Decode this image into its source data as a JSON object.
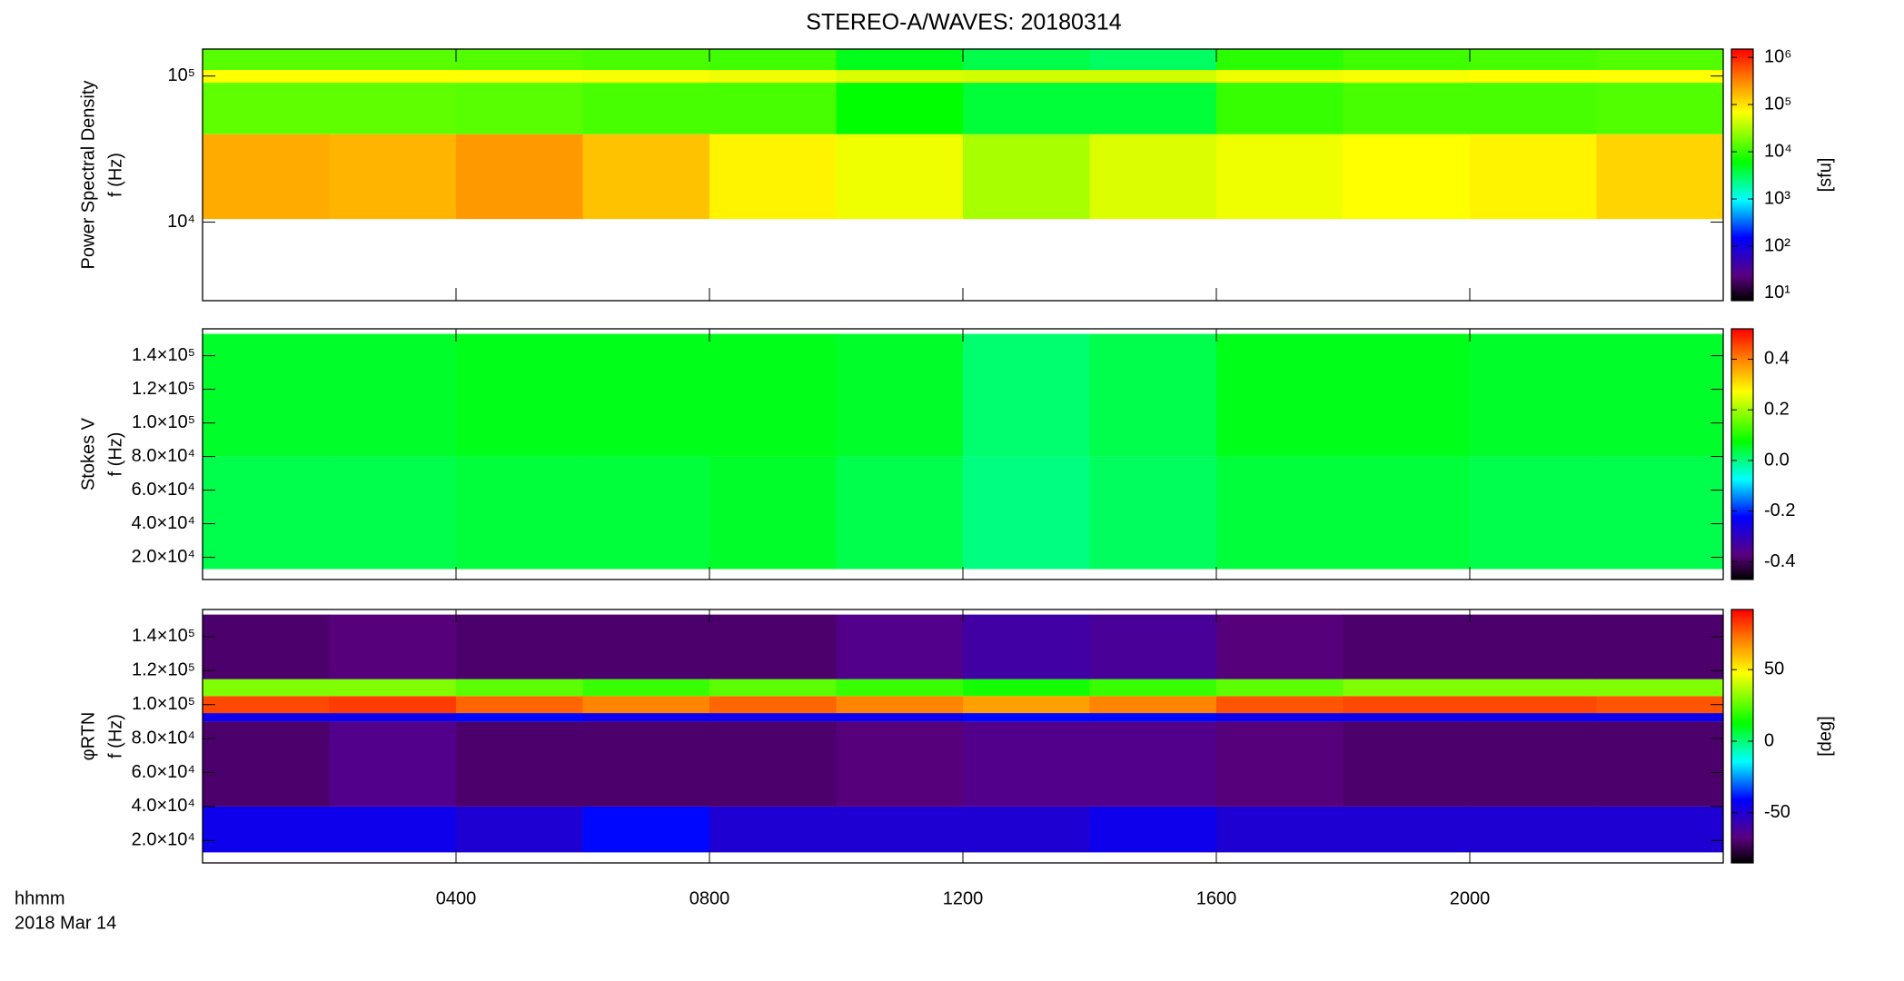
{
  "title": "STEREO-A/WAVES: 20180314",
  "x_axis": {
    "xlim": [
      0,
      24
    ],
    "xticks": [
      {
        "value": 4,
        "label": "0400"
      },
      {
        "value": 8,
        "label": "0800"
      },
      {
        "value": 12,
        "label": "1200"
      },
      {
        "value": 16,
        "label": "1600"
      },
      {
        "value": 20,
        "label": "2000"
      }
    ],
    "labels": [
      "hhmm",
      "2018 Mar 14"
    ]
  },
  "chart_data": [
    {
      "type": "heatmap",
      "ylabel": [
        "Power Spectral Density",
        "f (Hz)"
      ],
      "log_y": true,
      "ylim": [
        2900,
        153000
      ],
      "yticks": [
        {
          "value": 10000,
          "label": "10⁴"
        },
        {
          "value": 100000,
          "label": "10⁵"
        }
      ],
      "x_bins": [
        0,
        2,
        4,
        6,
        8,
        10,
        12,
        14,
        16,
        18,
        20,
        22,
        24
      ],
      "y_bins": [
        10500,
        40000,
        90000,
        110000,
        153000
      ],
      "z": [
        [
          200000,
          180000,
          250000,
          150000,
          80000,
          60000,
          30000,
          50000,
          60000,
          70000,
          80000,
          120000
        ],
        [
          15000,
          15000,
          14000,
          12000,
          12000,
          6000,
          4000,
          4000,
          10000,
          12000,
          12000,
          13000
        ],
        [
          70000,
          70000,
          70000,
          65000,
          60000,
          50000,
          45000,
          45000,
          60000,
          65000,
          70000,
          70000
        ],
        [
          14000,
          14000,
          13000,
          12000,
          11000,
          5000,
          3500,
          3000,
          9000,
          11000,
          12000,
          13000
        ]
      ],
      "colorbar": {
        "log": true,
        "clim": [
          7,
          1500000
        ],
        "label": "[sfu]",
        "ticks": [
          {
            "value": 10,
            "label": "10¹"
          },
          {
            "value": 100,
            "label": "10²"
          },
          {
            "value": 1000,
            "label": "10³"
          },
          {
            "value": 10000,
            "label": "10⁴"
          },
          {
            "value": 100000,
            "label": "10⁵"
          },
          {
            "value": 1000000,
            "label": "10⁶"
          }
        ]
      }
    },
    {
      "type": "heatmap",
      "ylabel": [
        "Stokes V",
        "f (Hz)"
      ],
      "log_y": false,
      "ylim": [
        6800,
        156000
      ],
      "yticks": [
        {
          "value": 20000,
          "label": "2.0×10⁴"
        },
        {
          "value": 40000,
          "label": "4.0×10⁴"
        },
        {
          "value": 60000,
          "label": "6.0×10⁴"
        },
        {
          "value": 80000,
          "label": "8.0×10⁴"
        },
        {
          "value": 100000,
          "label": "1.0×10⁵"
        },
        {
          "value": 120000,
          "label": "1.2×10⁵"
        },
        {
          "value": 140000,
          "label": "1.4×10⁵"
        }
      ],
      "x_bins": [
        0,
        2,
        4,
        6,
        8,
        10,
        12,
        14,
        16,
        18,
        20,
        22,
        24
      ],
      "y_bins": [
        13000,
        80000,
        153000
      ],
      "z": [
        [
          0.03,
          0.03,
          0.04,
          0.04,
          0.05,
          0.03,
          0.0,
          0.02,
          0.04,
          0.04,
          0.03,
          0.03
        ],
        [
          0.05,
          0.05,
          0.06,
          0.06,
          0.06,
          0.05,
          0.01,
          0.03,
          0.06,
          0.06,
          0.05,
          0.05
        ]
      ],
      "colorbar": {
        "log": false,
        "clim": [
          -0.47,
          0.52
        ],
        "label": "",
        "ticks": [
          -0.4,
          -0.2,
          {
            "value": 0,
            "label": "0.0"
          },
          0.2,
          0.4
        ]
      }
    },
    {
      "type": "heatmap",
      "ylabel": [
        "φRTN",
        "f (Hz)"
      ],
      "log_y": false,
      "ylim": [
        6800,
        156000
      ],
      "yticks": [
        {
          "value": 20000,
          "label": "2.0×10⁴"
        },
        {
          "value": 40000,
          "label": "4.0×10⁴"
        },
        {
          "value": 60000,
          "label": "6.0×10⁴"
        },
        {
          "value": 80000,
          "label": "8.0×10⁴"
        },
        {
          "value": 100000,
          "label": "1.0×10⁵"
        },
        {
          "value": 120000,
          "label": "1.2×10⁵"
        },
        {
          "value": 140000,
          "label": "1.4×10⁵"
        }
      ],
      "x_bins": [
        0,
        2,
        4,
        6,
        8,
        10,
        12,
        14,
        16,
        18,
        20,
        22,
        24
      ],
      "y_bins": [
        13000,
        40000,
        90000,
        95000,
        105000,
        115000,
        153000
      ],
      "z": [
        [
          -45,
          -45,
          -50,
          -40,
          -50,
          -50,
          -50,
          -45,
          -50,
          -50,
          -50,
          -50
        ],
        [
          -70,
          -65,
          -70,
          -70,
          -70,
          -68,
          -65,
          -65,
          -68,
          -70,
          -70,
          -70
        ],
        [
          -45,
          -45,
          -40,
          -45,
          -45,
          -45,
          -40,
          -40,
          -45,
          -45,
          -45,
          -45
        ],
        [
          80,
          82,
          75,
          70,
          75,
          70,
          65,
          70,
          78,
          80,
          80,
          78
        ],
        [
          30,
          30,
          25,
          20,
          25,
          20,
          15,
          20,
          25,
          30,
          30,
          30
        ],
        [
          -70,
          -68,
          -70,
          -70,
          -70,
          -65,
          -60,
          -62,
          -68,
          -70,
          -70,
          -70
        ]
      ],
      "colorbar": {
        "log": false,
        "clim": [
          -85,
          92
        ],
        "label": "[deg]",
        "ticks": [
          -50,
          0,
          50
        ]
      }
    }
  ]
}
